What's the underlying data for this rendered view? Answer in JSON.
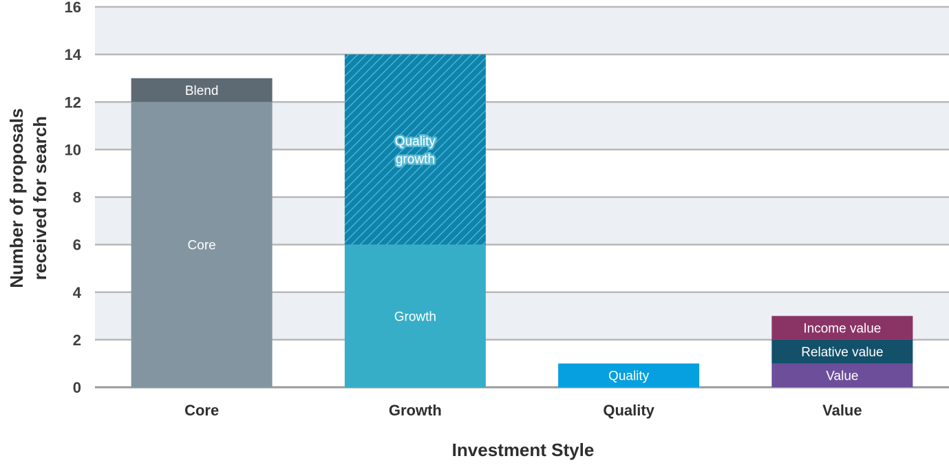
{
  "chart_data": {
    "type": "bar",
    "stacked": true,
    "xlabel": "Investment Style",
    "ylabel_lines": [
      "Number of proposals",
      "received for search"
    ],
    "ylim": [
      0,
      16
    ],
    "yticks": [
      0,
      2,
      4,
      6,
      8,
      10,
      12,
      14,
      16
    ],
    "grid": true,
    "legend": "none",
    "categories": [
      "Core",
      "Growth",
      "Quality",
      "Value"
    ],
    "bars": [
      {
        "category": "Core",
        "segments": [
          {
            "label": "Core",
            "value": 12,
            "color": "#8395a1"
          },
          {
            "label": "Blend",
            "value": 1,
            "color": "#5e6a73"
          }
        ]
      },
      {
        "category": "Growth",
        "segments": [
          {
            "label": "Growth",
            "value": 6,
            "color": "#37aec8"
          },
          {
            "label": "Quality growth",
            "label_lines": [
              "Quality",
              "growth"
            ],
            "value": 8,
            "color": "#0e84ad",
            "pattern": "hatch"
          }
        ]
      },
      {
        "category": "Quality",
        "segments": [
          {
            "label": "Quality",
            "value": 1,
            "color": "#06a0e0"
          }
        ]
      },
      {
        "category": "Value",
        "segments": [
          {
            "label": "Value",
            "value": 1,
            "color": "#6c4e9a"
          },
          {
            "label": "Relative value",
            "value": 1,
            "color": "#13506a"
          },
          {
            "label": "Income value",
            "value": 1,
            "color": "#8a3466"
          }
        ]
      }
    ],
    "colors": {
      "band": "#eceff4",
      "gridline": "#b8b8b8",
      "baseline": "#9a9a9a"
    }
  }
}
